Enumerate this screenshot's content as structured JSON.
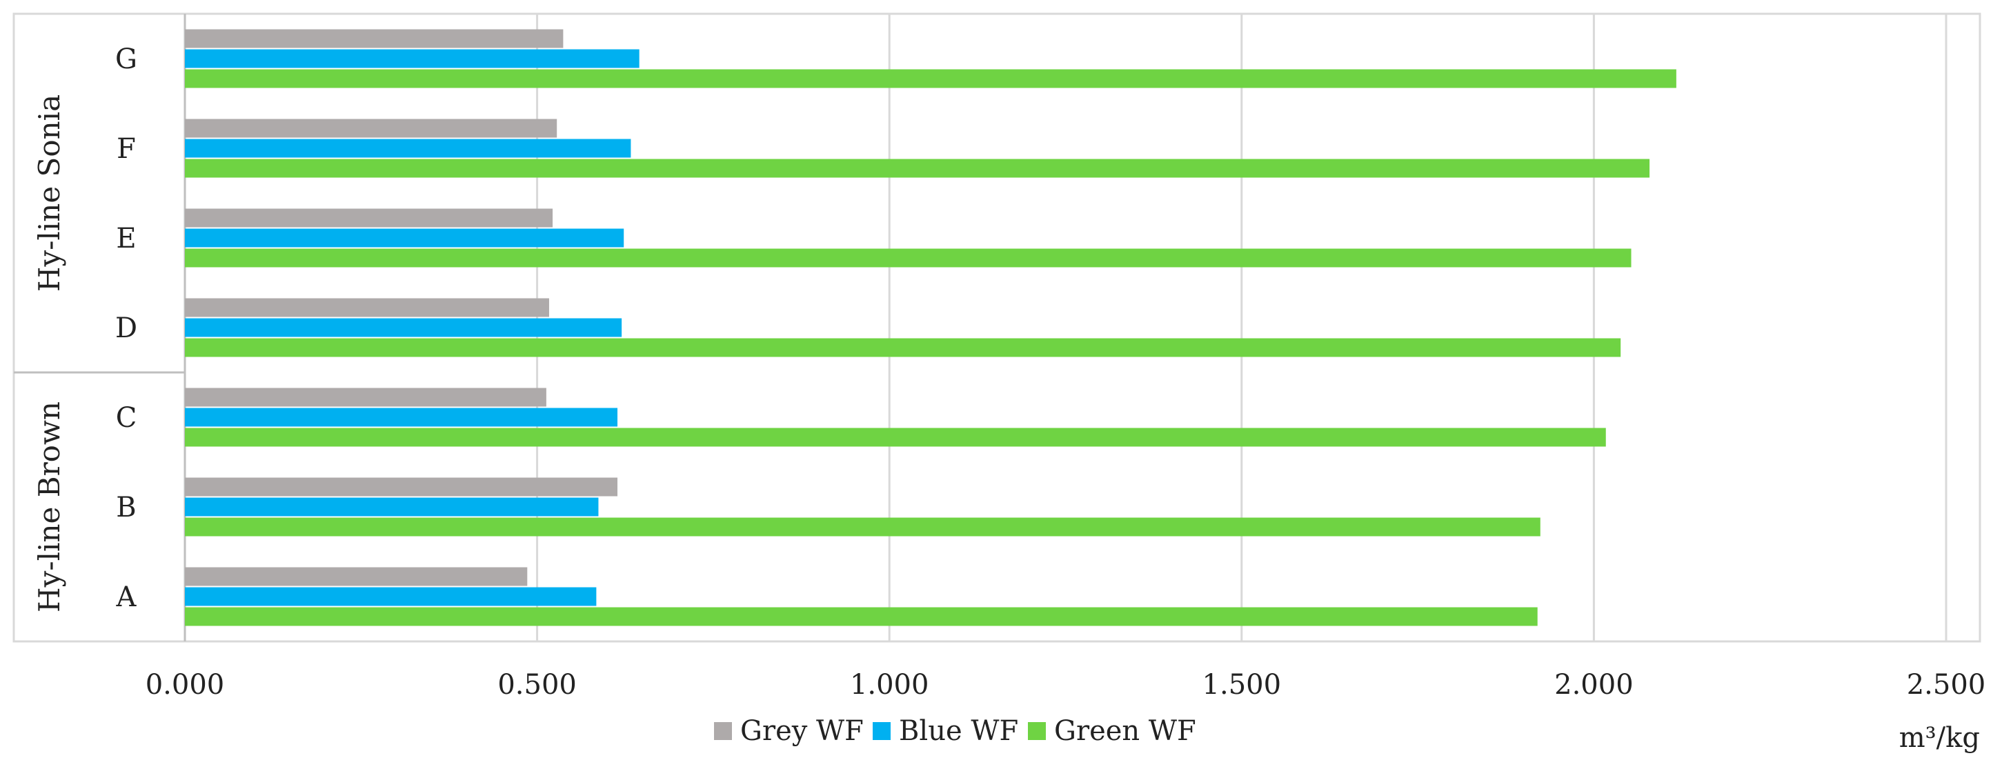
{
  "chart_data": {
    "type": "bar",
    "orientation": "horizontal",
    "categories": [
      "A",
      "B",
      "C",
      "D",
      "E",
      "F",
      "G"
    ],
    "groups": [
      {
        "label": "Hy-line Brown",
        "categories": [
          "A",
          "B",
          "C"
        ]
      },
      {
        "label": "Hy-line Sonia",
        "categories": [
          "D",
          "E",
          "F",
          "G"
        ]
      }
    ],
    "series": [
      {
        "name": "Grey WF",
        "color": "#aeaaaa",
        "values": [
          0.486,
          0.614,
          0.513,
          0.517,
          0.522,
          0.528,
          0.537
        ]
      },
      {
        "name": "Blue WF",
        "color": "#00b0f0",
        "values": [
          0.584,
          0.587,
          0.614,
          0.62,
          0.623,
          0.633,
          0.645
        ]
      },
      {
        "name": "Green WF",
        "color": "#6fd343",
        "values": [
          1.92,
          1.924,
          2.017,
          2.038,
          2.053,
          2.079,
          2.117
        ]
      }
    ],
    "x_ticks": [
      "0.000",
      "0.500",
      "1.000",
      "1.500",
      "2.000",
      "2.500"
    ],
    "xlim": [
      0,
      2.5
    ],
    "xlabel": "m³/kg",
    "grid": true,
    "legend_position": "bottom"
  }
}
